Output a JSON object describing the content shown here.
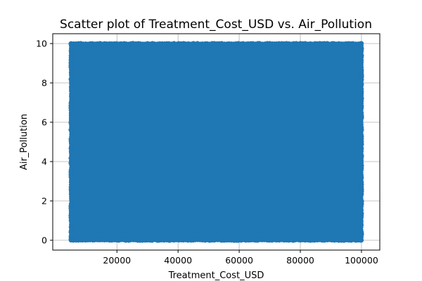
{
  "chart_data": {
    "type": "scatter",
    "title": "Scatter plot of Treatment_Cost_USD vs. Air_Pollution",
    "xlabel": "Treatment_Cost_USD",
    "ylabel": "Air_Pollution",
    "xlim": [
      -1000,
      106000
    ],
    "ylim": [
      -0.5,
      10.5
    ],
    "xticks": [
      20000,
      40000,
      60000,
      80000,
      100000
    ],
    "xtick_labels": [
      "20000",
      "40000",
      "60000",
      "80000",
      "100000"
    ],
    "yticks": [
      0,
      2,
      4,
      6,
      8,
      10
    ],
    "ytick_labels": [
      "0",
      "2",
      "4",
      "6",
      "8",
      "10"
    ],
    "grid": true,
    "marker_color": "#1f77b4",
    "points_description_range": {
      "x_min": 5000,
      "x_max": 100000,
      "y_min": 0,
      "y_max": 10
    },
    "series": [
      {
        "values": [
          [
            5000,
            0.0
          ],
          [
            5000,
            10.0
          ],
          [
            100000,
            0.0
          ],
          [
            100000,
            10.0
          ],
          [
            5200,
            5.1
          ],
          [
            99800,
            4.8
          ],
          [
            52000,
            0.05
          ],
          [
            48000,
            9.95
          ],
          [
            12000,
            2.3
          ],
          [
            27000,
            7.8
          ],
          [
            38500,
            3.4
          ],
          [
            61000,
            8.6
          ],
          [
            73500,
            1.2
          ],
          [
            88000,
            6.7
          ],
          [
            94000,
            9.1
          ],
          [
            15500,
            9.4
          ],
          [
            33000,
            0.6
          ],
          [
            45500,
            5.9
          ],
          [
            57000,
            2.8
          ],
          [
            69000,
            4.4
          ],
          [
            81000,
            7.3
          ],
          [
            91500,
            3.9
          ],
          [
            8500,
            6.2
          ],
          [
            22000,
            1.7
          ],
          [
            41000,
            8.1
          ],
          [
            66000,
            6.5
          ],
          [
            77000,
            9.7
          ],
          [
            97000,
            1.6
          ]
        ]
      }
    ]
  }
}
